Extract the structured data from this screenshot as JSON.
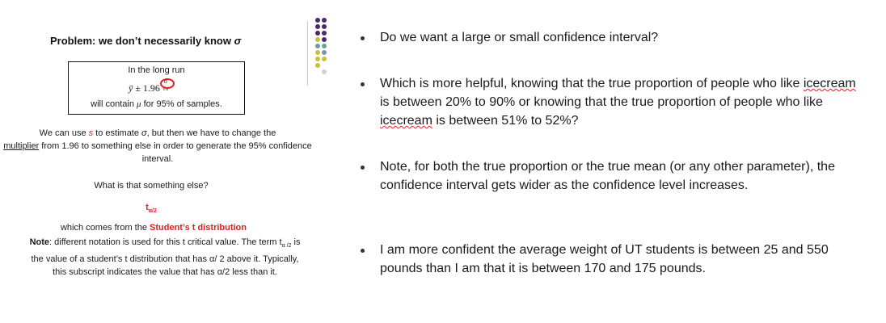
{
  "left": {
    "title_prefix": "Problem: we don’t necessarily know ",
    "title_sigma": "σ",
    "box": {
      "line1": "In the long run",
      "ybar": "ȳ",
      "plusminus": " ± 1.96",
      "frac_num": "σ",
      "frac_den": "√n",
      "line3_pre": "will contain ",
      "mu": "μ",
      "line3_post": " for 95% of samples."
    },
    "estimate": {
      "part1": "We can use ",
      "s": "s",
      "part2": " to estimate ",
      "sigma": "σ",
      "part3": ", but then we have to change the",
      "multiplier": "multiplier",
      "part4": " from 1.96 to something else in order to generate the 95% confidence interval."
    },
    "question": "What is that something else?",
    "t_symbol": "t",
    "t_sub": "α/2",
    "comes_from_pre": "which comes from the ",
    "comes_from_bold": "Student’s t distribution",
    "note_label": "Note",
    "note_part1": ": different notation is used for this t critical value.  The term t",
    "note_sub": "α /2",
    "note_part2": " is the value of a student’s t distribution that has α/ 2 above it.  Typically, this subscript indicates the value that has α/2 less than it."
  },
  "bullets": [
    {
      "text": "Do we want a large or small confidence interval?"
    },
    {
      "part1": "Which is more helpful, knowing that the true proportion of people who like ",
      "misspell1": "icecream",
      "part2": " is between 20% to 90% or knowing that the true proportion of people who like ",
      "misspell2": "icecream",
      "part3": " is between 51% to 52%?"
    },
    {
      "text": "Note, for both the true proportion or the true mean (or any other parameter), the confidence interval gets wider as the confidence level increases."
    },
    {
      "text": "I am more confident the average weight of UT students is between 25 and 550 pounds than I am that it is between 170 and 175 pounds."
    }
  ],
  "colors": {
    "accent_red": "#e02020",
    "dot_purple": "#4b2a6b",
    "dot_teal": "#6f9ea0",
    "dot_olive": "#c8c23a",
    "dot_gray": "#d0d0d0"
  }
}
